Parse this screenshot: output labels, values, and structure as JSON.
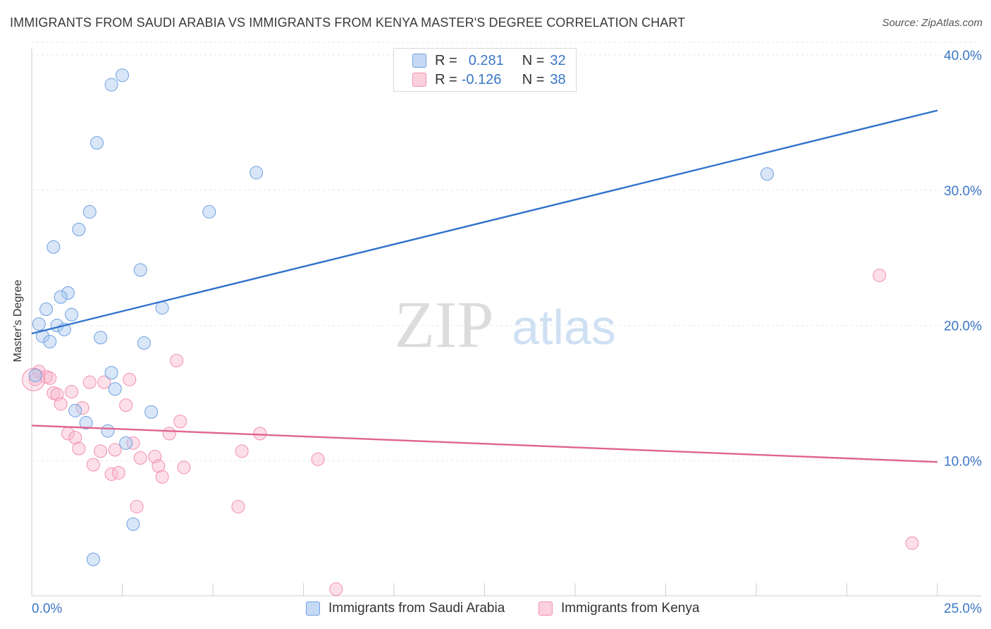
{
  "title": "IMMIGRANTS FROM SAUDI ARABIA VS IMMIGRANTS FROM KENYA MASTER'S DEGREE CORRELATION CHART",
  "source": "Source: ZipAtlas.com",
  "watermark": {
    "zip": "ZIP",
    "atlas": "atlas"
  },
  "legend": {
    "rows": [
      {
        "r_label": "R =",
        "r_value": "0.281",
        "n_label": "N =",
        "n_value": "32"
      },
      {
        "r_label": "R =",
        "r_value": "-0.126",
        "n_label": "N =",
        "n_value": "38"
      }
    ]
  },
  "bottom_legend": {
    "series1": "Immigrants from Saudi Arabia",
    "series2": "Immigrants from Kenya"
  },
  "chart_data": {
    "type": "scatter",
    "title": "IMMIGRANTS FROM SAUDI ARABIA VS IMMIGRANTS FROM KENYA MASTER'S DEGREE CORRELATION CHART",
    "xlabel": "",
    "ylabel": "Master's Degree",
    "xlim": [
      0,
      25
    ],
    "ylim": [
      0,
      40
    ],
    "x_tick_labels": [
      "0.0%",
      "25.0%"
    ],
    "y_ticks": [
      10,
      20,
      30,
      40
    ],
    "y_tick_labels": [
      "10.0%",
      "20.0%",
      "30.0%",
      "40.0%"
    ],
    "colors": {
      "saudi": "#6fa0e0",
      "kenya": "#f28fb0",
      "saudi_line": "#2f72cc",
      "kenya_line": "#e0648e",
      "tick": "#3a76c4"
    },
    "series": [
      {
        "name": "Immigrants from Saudi Arabia",
        "key": "saudi",
        "points": [
          [
            2.5,
            38.5
          ],
          [
            2.2,
            37.8
          ],
          [
            1.8,
            33.5
          ],
          [
            6.2,
            31.3
          ],
          [
            20.3,
            31.2
          ],
          [
            1.6,
            28.4
          ],
          [
            4.9,
            28.4
          ],
          [
            1.3,
            27.1
          ],
          [
            0.6,
            25.8
          ],
          [
            3.0,
            24.1
          ],
          [
            1.0,
            22.4
          ],
          [
            0.8,
            22.1
          ],
          [
            0.4,
            21.2
          ],
          [
            3.6,
            21.3
          ],
          [
            1.1,
            20.8
          ],
          [
            0.2,
            20.1
          ],
          [
            0.7,
            20.0
          ],
          [
            0.9,
            19.7
          ],
          [
            0.3,
            19.2
          ],
          [
            1.9,
            19.1
          ],
          [
            0.5,
            18.8
          ],
          [
            3.1,
            18.7
          ],
          [
            2.2,
            16.5
          ],
          [
            0.1,
            16.3
          ],
          [
            2.3,
            15.3
          ],
          [
            1.2,
            13.7
          ],
          [
            3.3,
            13.6
          ],
          [
            1.5,
            12.8
          ],
          [
            2.1,
            12.2
          ],
          [
            2.6,
            11.3
          ],
          [
            2.8,
            5.3
          ],
          [
            1.7,
            2.7
          ]
        ]
      },
      {
        "name": "Immigrants from Kenya",
        "key": "kenya",
        "points": [
          [
            0.1,
            16.0
          ],
          [
            0.2,
            16.6
          ],
          [
            0.4,
            16.2
          ],
          [
            0.5,
            16.1
          ],
          [
            0.6,
            15.0
          ],
          [
            0.7,
            14.9
          ],
          [
            0.8,
            14.2
          ],
          [
            1.1,
            15.1
          ],
          [
            1.6,
            15.8
          ],
          [
            2.0,
            15.8
          ],
          [
            2.7,
            16.0
          ],
          [
            4.0,
            17.4
          ],
          [
            1.4,
            13.9
          ],
          [
            2.6,
            14.1
          ],
          [
            4.1,
            12.9
          ],
          [
            1.0,
            12.0
          ],
          [
            1.2,
            11.7
          ],
          [
            3.8,
            12.0
          ],
          [
            6.3,
            12.0
          ],
          [
            2.8,
            11.3
          ],
          [
            1.3,
            10.9
          ],
          [
            1.9,
            10.7
          ],
          [
            2.3,
            10.8
          ],
          [
            5.8,
            10.7
          ],
          [
            3.4,
            10.3
          ],
          [
            3.0,
            10.2
          ],
          [
            7.9,
            10.1
          ],
          [
            1.7,
            9.7
          ],
          [
            3.5,
            9.6
          ],
          [
            4.2,
            9.5
          ],
          [
            2.2,
            9.0
          ],
          [
            2.4,
            9.1
          ],
          [
            3.6,
            8.8
          ],
          [
            2.9,
            6.6
          ],
          [
            5.7,
            6.6
          ],
          [
            23.4,
            23.7
          ],
          [
            24.3,
            3.9
          ],
          [
            8.4,
            0.5
          ]
        ]
      }
    ],
    "trend_lines": [
      {
        "name": "Immigrants from Saudi Arabia",
        "key": "saudi_line",
        "x": [
          0,
          25
        ],
        "y": [
          19.4,
          35.9
        ]
      },
      {
        "name": "Immigrants from Kenya",
        "key": "kenya_line",
        "x": [
          0,
          25
        ],
        "y": [
          12.6,
          9.9
        ]
      }
    ]
  }
}
